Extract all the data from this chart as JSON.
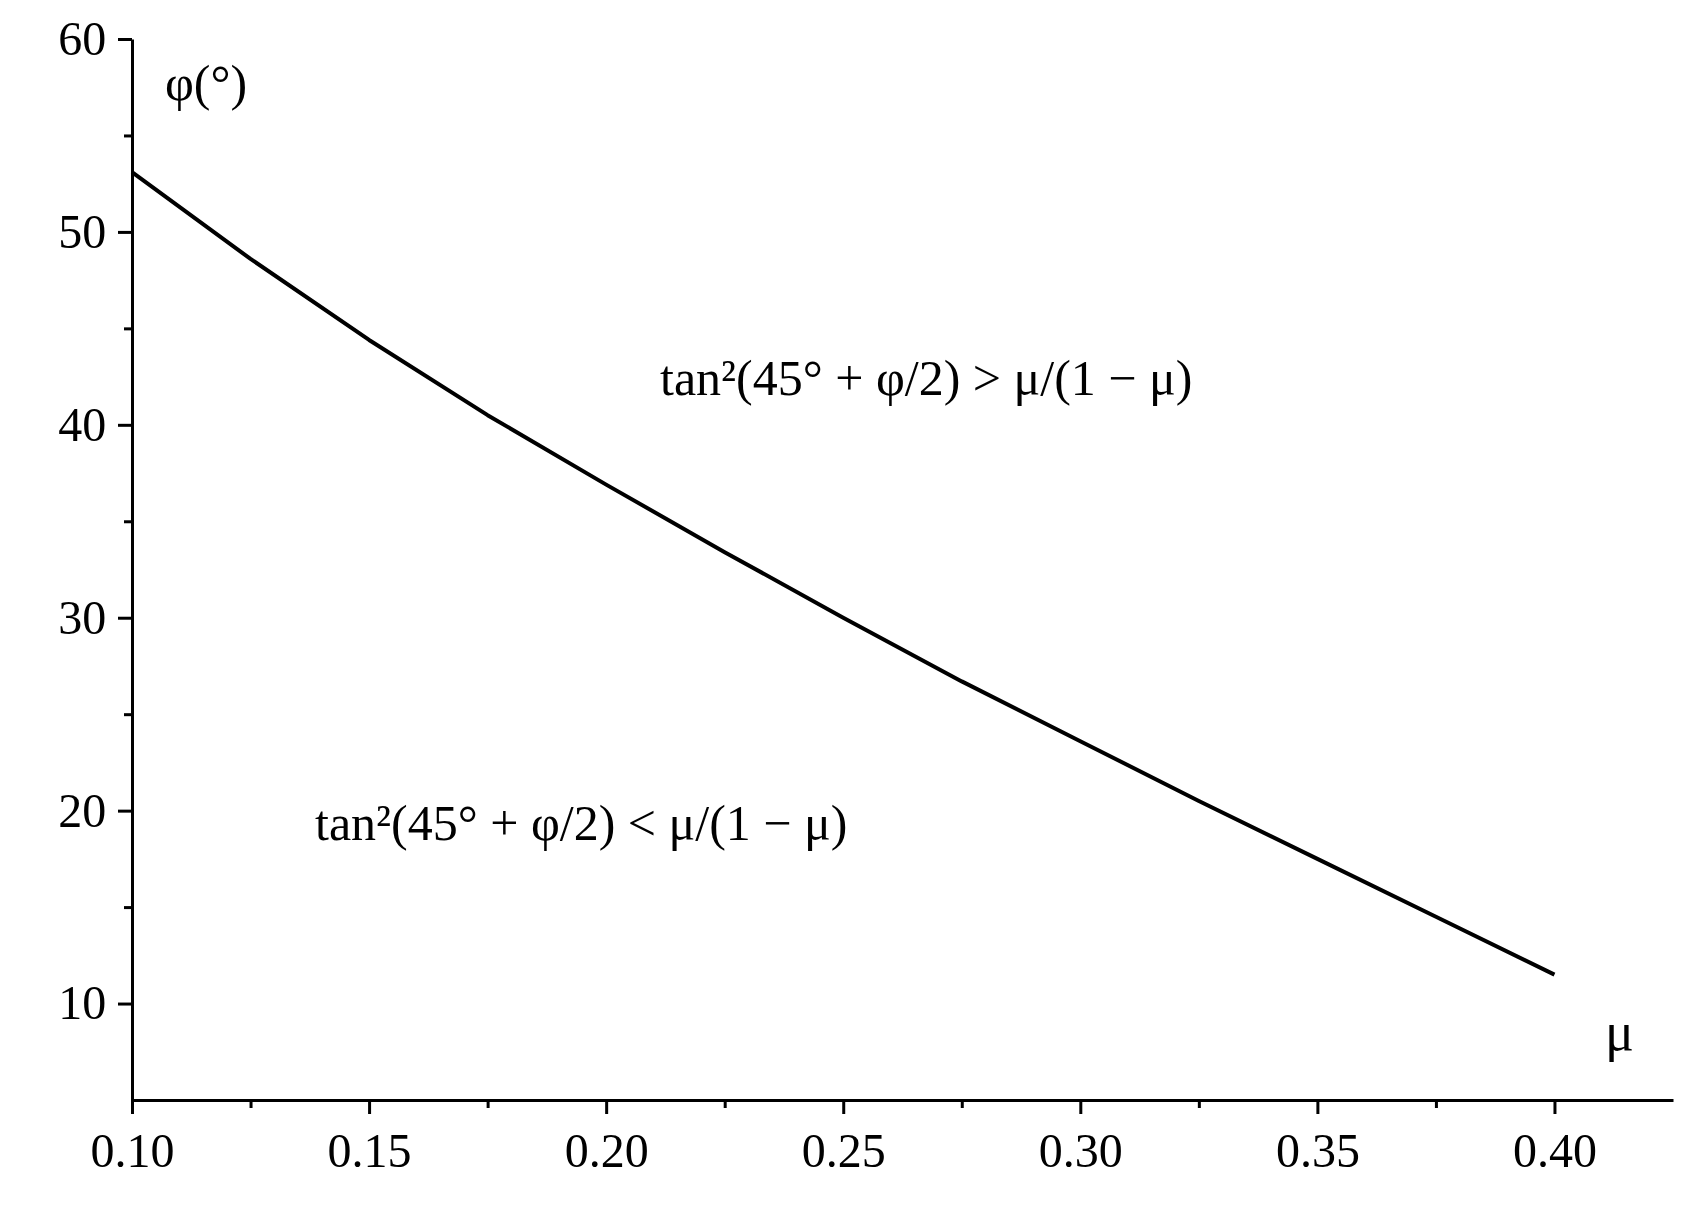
{
  "chart_data": {
    "type": "line",
    "xlabel": "μ",
    "ylabel": "φ(°)",
    "x": [
      0.1,
      0.125,
      0.15,
      0.175,
      0.2,
      0.225,
      0.25,
      0.275,
      0.3,
      0.325,
      0.35,
      0.375,
      0.4
    ],
    "series": [
      {
        "color": "#000000",
        "values": [
          53.1,
          48.6,
          44.4,
          40.5,
          36.9,
          33.4,
          30.0,
          26.7,
          23.6,
          20.5,
          17.5,
          14.5,
          11.5
        ]
      }
    ],
    "xlim": [
      0.1,
      0.425
    ],
    "xticks": [
      {
        "value": 0.1,
        "label": "0.10"
      },
      {
        "value": 0.125,
        "label": null
      },
      {
        "value": 0.15,
        "label": "0.15"
      },
      {
        "value": 0.175,
        "label": null
      },
      {
        "value": 0.2,
        "label": "0.20"
      },
      {
        "value": 0.225,
        "label": null
      },
      {
        "value": 0.25,
        "label": "0.25"
      },
      {
        "value": 0.275,
        "label": null
      },
      {
        "value": 0.3,
        "label": "0.30"
      },
      {
        "value": 0.325,
        "label": null
      },
      {
        "value": 0.35,
        "label": "0.35"
      },
      {
        "value": 0.375,
        "label": null
      },
      {
        "value": 0.4,
        "label": "0.40"
      }
    ],
    "ylim": [
      5,
      60
    ],
    "yticks": [
      10,
      {
        "value": 15,
        "label": null
      },
      20,
      {
        "value": 25,
        "label": null
      },
      30,
      {
        "value": 35,
        "label": null
      },
      40,
      {
        "value": 45,
        "label": null
      },
      50,
      {
        "value": 55,
        "label": null
      },
      60
    ],
    "annotations": [
      "tan²(45° + φ/2) > μ/(1 − μ)",
      "tan²(45° + φ/2) < μ/(1 − μ)"
    ],
    "marker": "none",
    "line_style": "solid",
    "grid": false
  }
}
